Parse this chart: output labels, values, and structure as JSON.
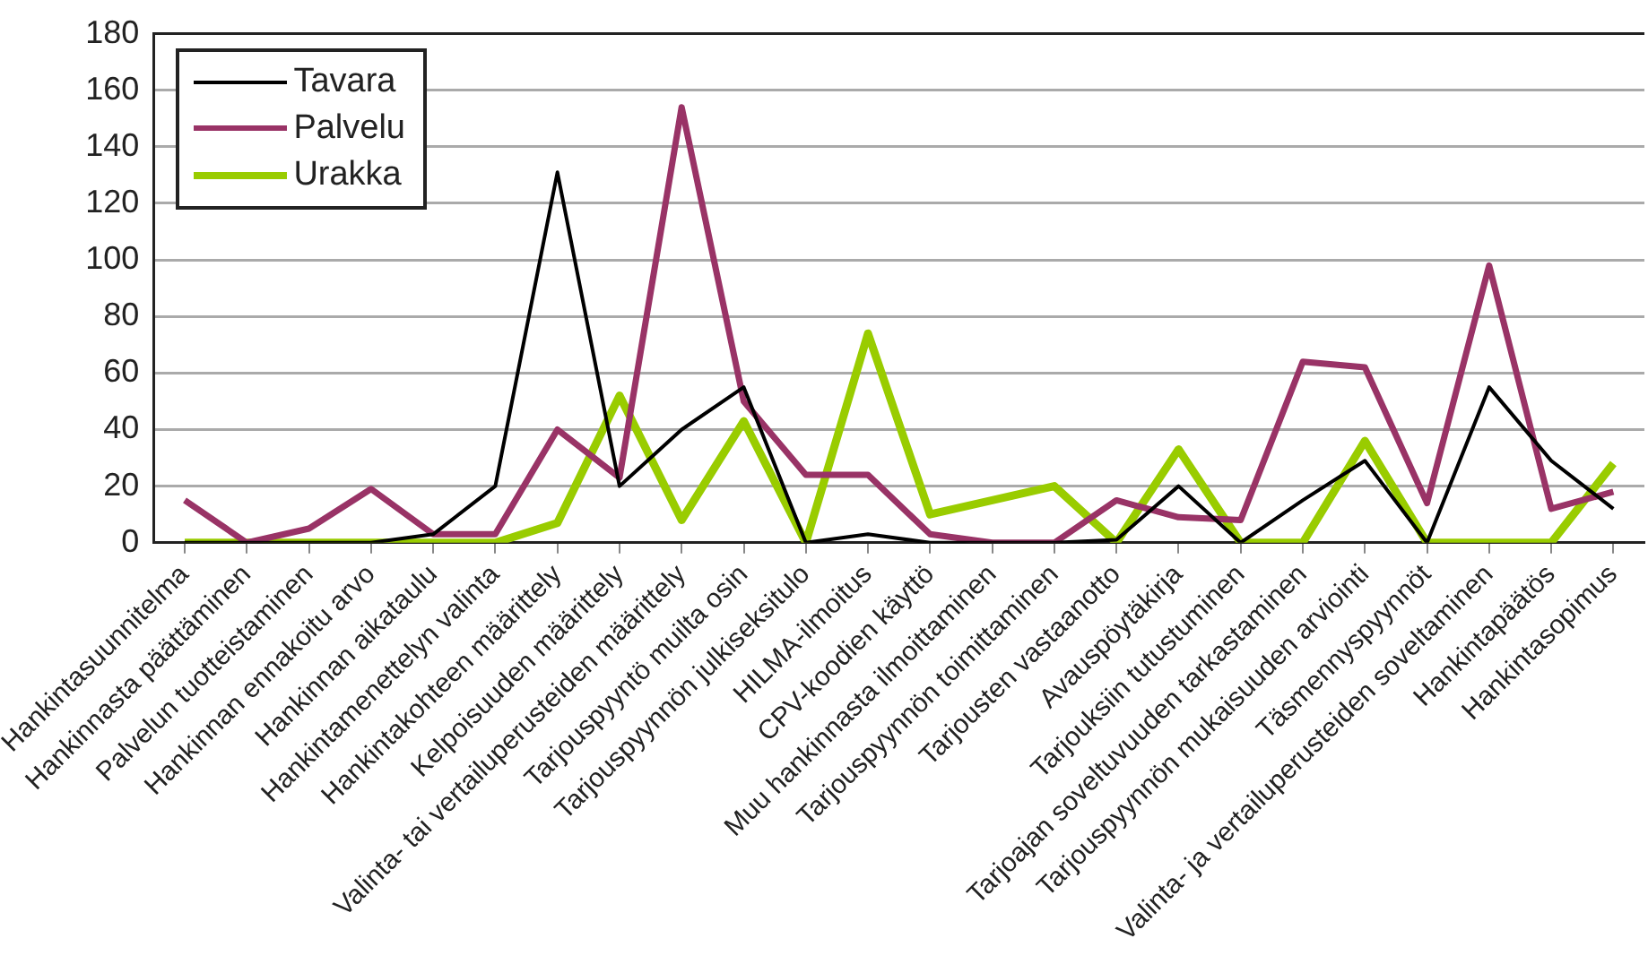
{
  "chart_data": {
    "type": "line",
    "categories": [
      "Hankintasuunnitelma",
      "Hankinnasta päättäminen",
      "Palvelun tuotteistaminen",
      "Hankinnan ennakoitu arvo",
      "Hankinnan aikataulu",
      "Hankintamenettelyn valinta",
      "Hankintakohteen määrittely",
      "Kelpoisuuden määrittely",
      "Valinta- tai vertailuperusteiden määrittely",
      "Tarjouspyyntö muilta osin",
      "Tarjouspyynnön julkiseksitulo",
      "HILMA-ilmoitus",
      "CPV-koodien käyttö",
      "Muu hankinnasta ilmoittaminen",
      "Tarjouspyynnön toimittaminen",
      "Tarjousten vastaanotto",
      "Avauspöytäkirja",
      "Tarjouksiin tutustuminen",
      "Tarjoajan soveltuvuuden tarkastaminen",
      "Tarjouspyynnön mukaisuuden arviointi",
      "Täsmennyspyynnöt",
      "Valinta- ja vertailuperusteiden soveltaminen",
      "Hankintapäätös",
      "Hankintasopimus"
    ],
    "series": [
      {
        "name": "Tavara",
        "color": "#000000",
        "values": [
          0,
          0,
          0,
          0,
          3,
          20,
          131,
          20,
          40,
          55,
          0,
          3,
          0,
          0,
          0,
          1,
          20,
          0,
          15,
          29,
          0,
          55,
          29,
          12
        ]
      },
      {
        "name": "Palvelu",
        "color": "#993366",
        "values": [
          15,
          0,
          5,
          19,
          3,
          3,
          40,
          23,
          154,
          50,
          24,
          24,
          3,
          0,
          0,
          15,
          9,
          8,
          64,
          62,
          14,
          98,
          12,
          18
        ]
      },
      {
        "name": "Urakka",
        "color": "#99cc00",
        "values": [
          0,
          0,
          0,
          0,
          0,
          0,
          7,
          52,
          8,
          43,
          0,
          74,
          10,
          15,
          20,
          0,
          33,
          0,
          0,
          36,
          0,
          0,
          0,
          28
        ]
      }
    ],
    "ylim": [
      0,
      180
    ],
    "yticks": [
      0,
      20,
      40,
      60,
      80,
      100,
      120,
      140,
      160,
      180
    ],
    "grid": "y",
    "legend": "top left",
    "marker": "none",
    "line_style": "solid"
  }
}
